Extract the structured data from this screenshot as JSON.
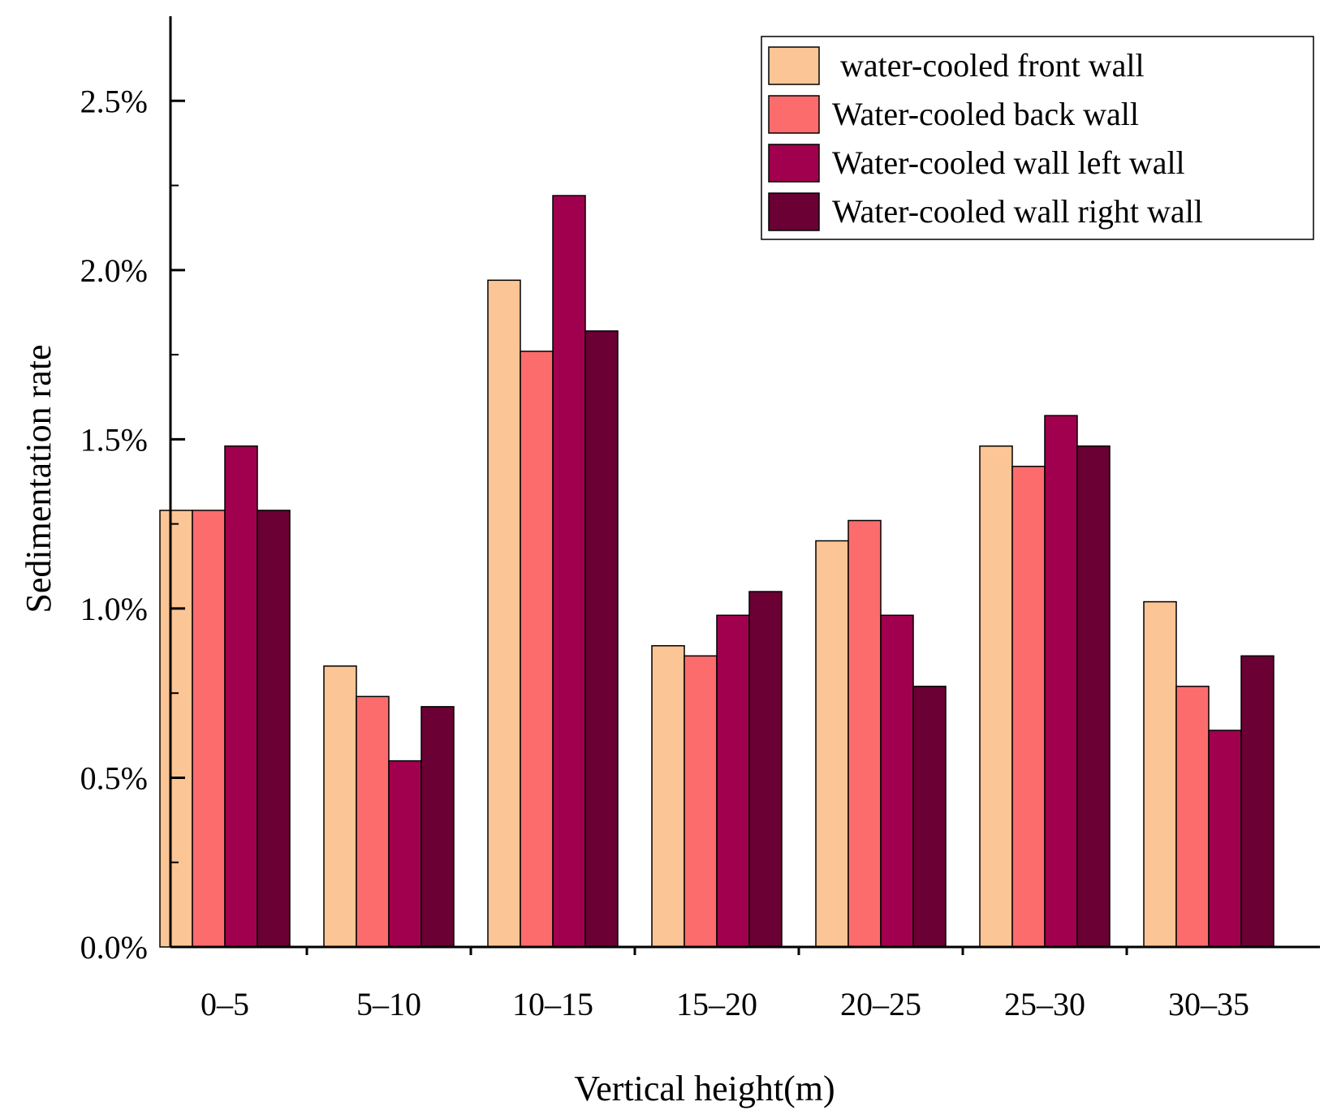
{
  "chart_data": {
    "type": "bar",
    "title": "",
    "xlabel": "Vertical height(m)",
    "ylabel": "Sedimentation rate",
    "ylim": [
      0,
      2.75
    ],
    "yticks": [
      0.0,
      0.5,
      1.0,
      1.5,
      2.0,
      2.5
    ],
    "ytick_labels": [
      "0.0%",
      "0.5%",
      "1.0%",
      "1.5%",
      "2.0%",
      "2.5%"
    ],
    "value_unit": "%",
    "grid": false,
    "legend_position": "top-right",
    "categories": [
      "0–5",
      "5–10",
      "10–15",
      "15–20",
      "20–25",
      "25–30",
      "30–35"
    ],
    "series": [
      {
        "name": " water-cooled front wall",
        "color": "#FCC595",
        "values": [
          1.29,
          0.83,
          1.97,
          0.89,
          1.2,
          1.48,
          1.02
        ]
      },
      {
        "name": "Water-cooled back wall",
        "color": "#FC6C6C",
        "values": [
          1.29,
          0.74,
          1.76,
          0.86,
          1.26,
          1.42,
          0.77
        ]
      },
      {
        "name": "Water-cooled wall left wall",
        "color": "#A0004E",
        "values": [
          1.48,
          0.55,
          2.22,
          0.98,
          0.98,
          1.57,
          0.64
        ]
      },
      {
        "name": "Water-cooled wall right wall",
        "color": "#6A0034",
        "values": [
          1.29,
          0.71,
          1.82,
          1.05,
          0.77,
          1.48,
          0.86
        ]
      }
    ]
  }
}
